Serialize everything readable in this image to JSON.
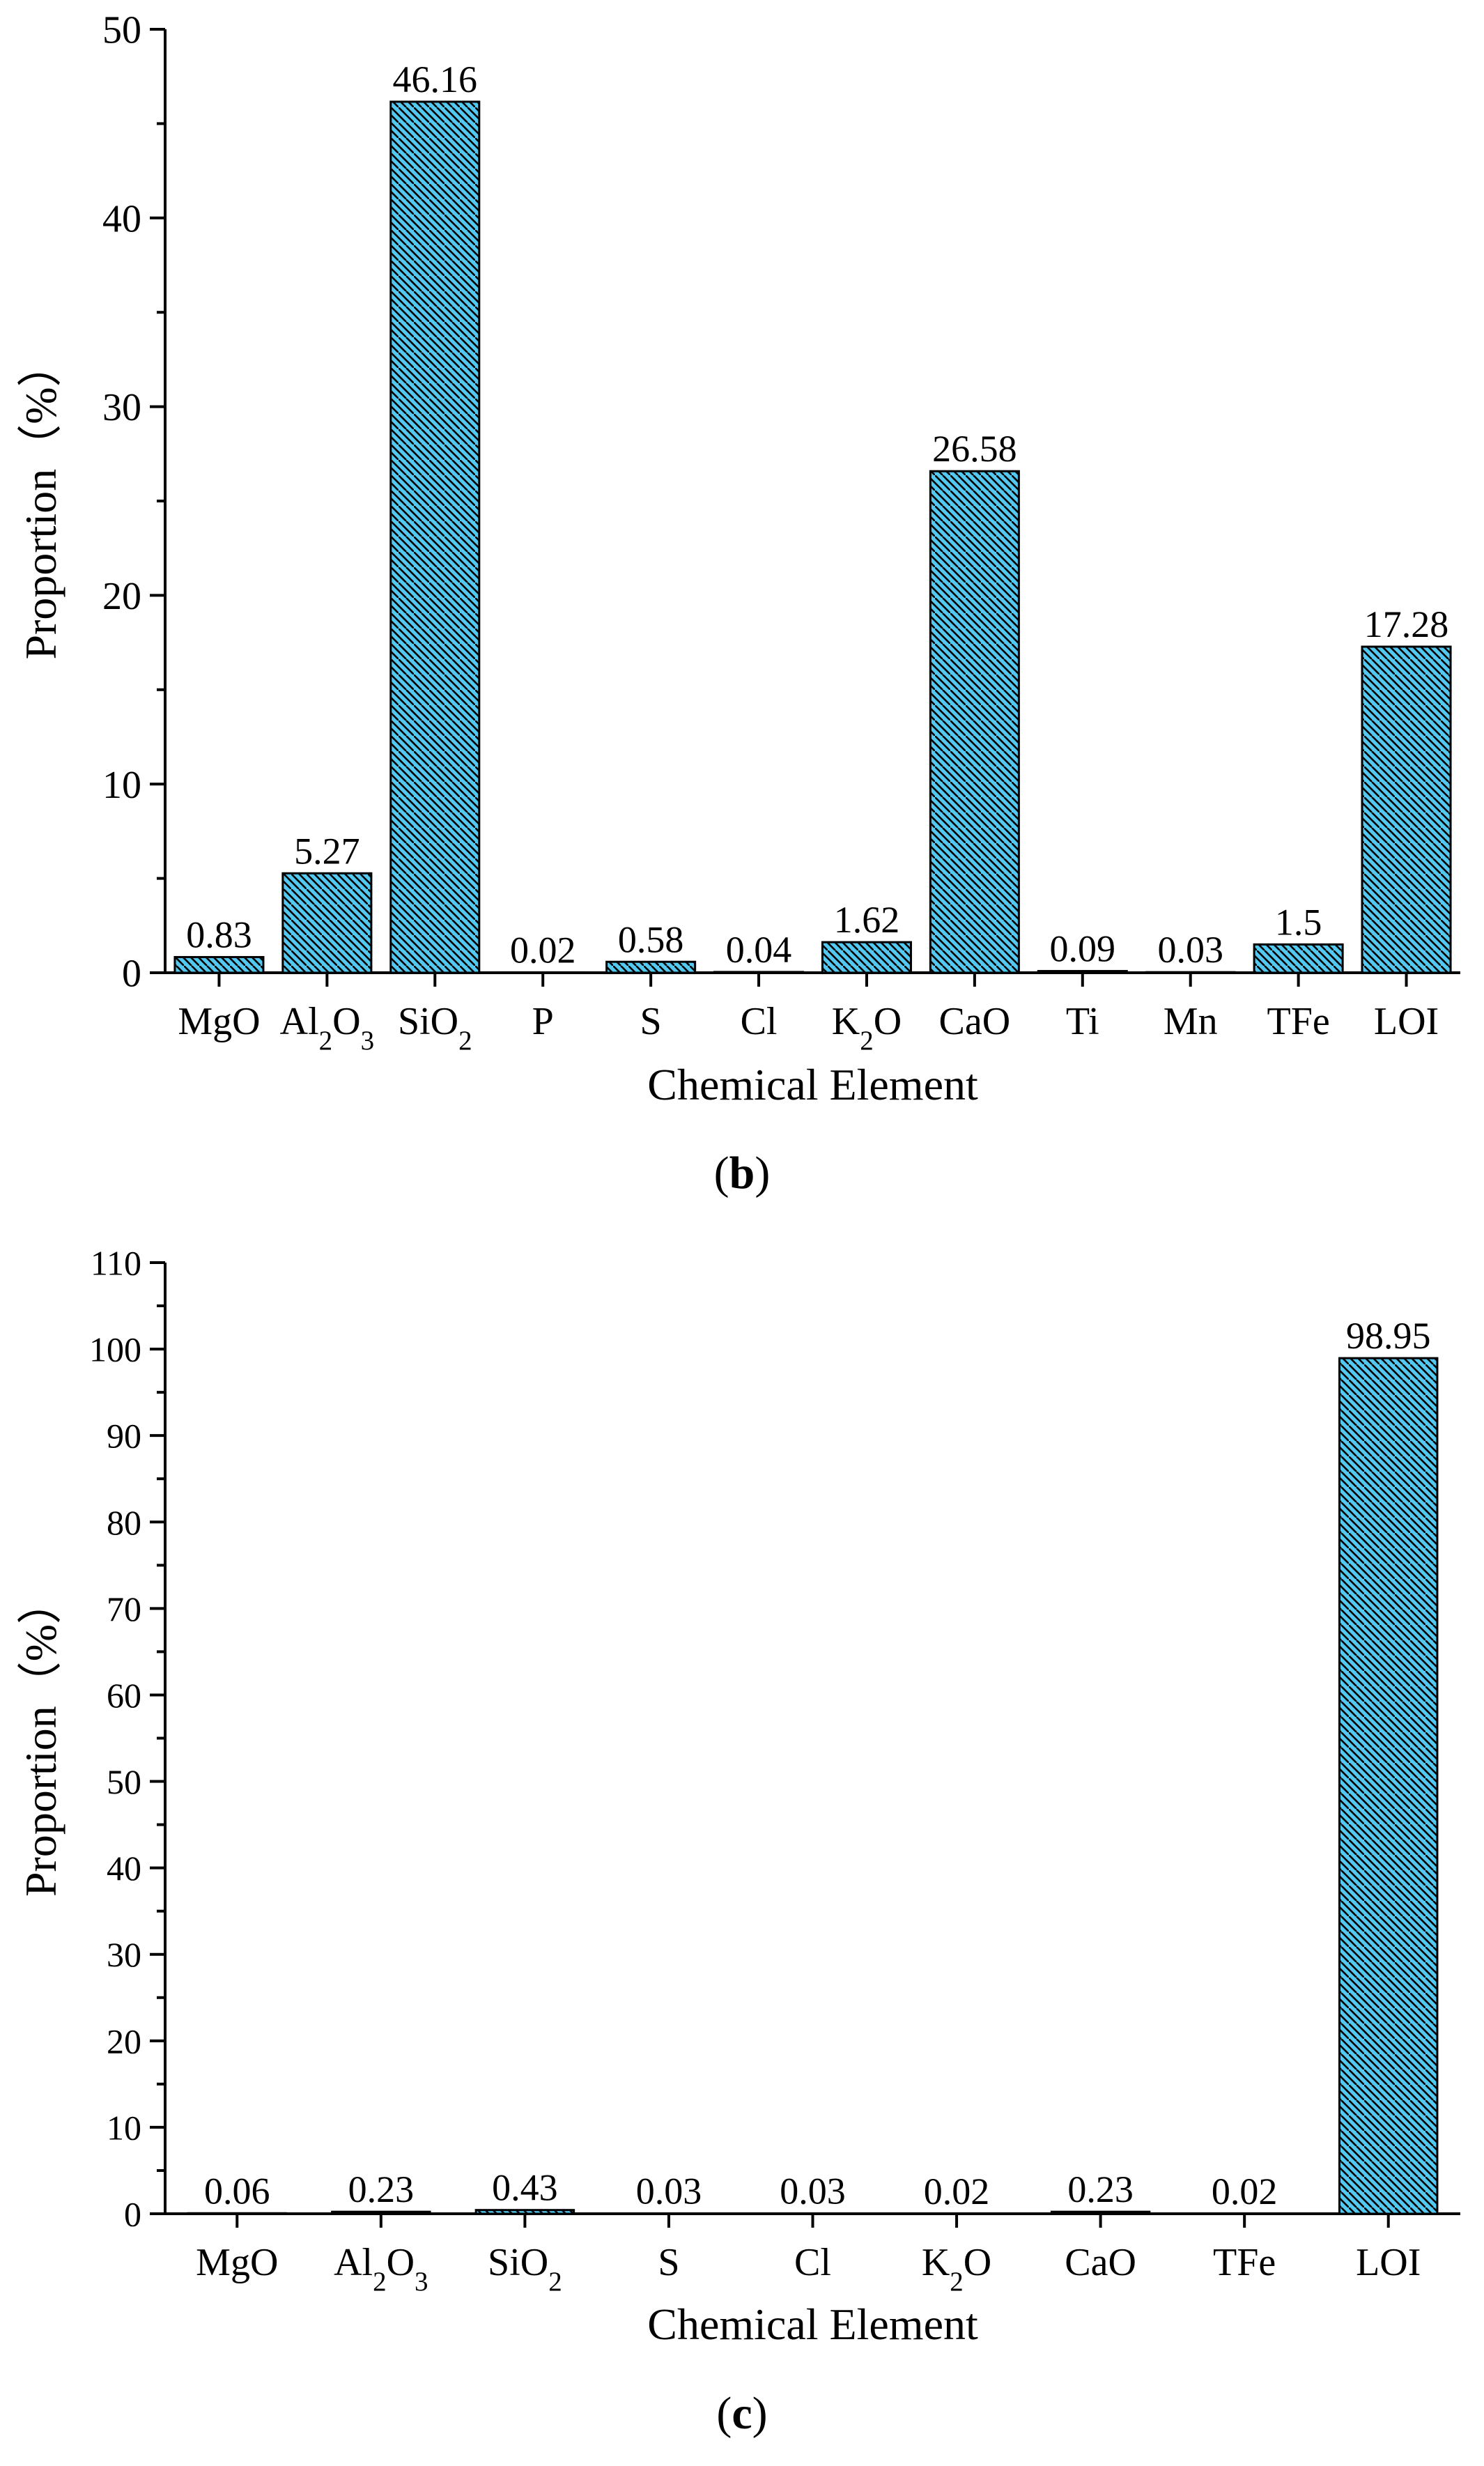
{
  "colors": {
    "bar_fill": "#53c8f1",
    "hatch": "#000000",
    "axis": "#000000"
  },
  "chart_data": [
    {
      "type": "bar",
      "panel_label": "b",
      "xlabel": "Chemical Element",
      "ylabel": "Proportion（%）",
      "ylim": [
        0,
        50
      ],
      "ytick_step": 10,
      "yminor_step": 5,
      "categories": [
        {
          "base": "MgO",
          "parts": [
            [
              "MgO",
              ""
            ]
          ]
        },
        {
          "base": "Al2O3",
          "parts": [
            [
              "Al",
              ""
            ],
            [
              "2",
              "sub"
            ],
            [
              "O",
              ""
            ],
            [
              "3",
              "sub"
            ]
          ]
        },
        {
          "base": "SiO2",
          "parts": [
            [
              "SiO",
              ""
            ],
            [
              "2",
              "sub"
            ]
          ]
        },
        {
          "base": "P",
          "parts": [
            [
              "P",
              ""
            ]
          ]
        },
        {
          "base": "S",
          "parts": [
            [
              "S",
              ""
            ]
          ]
        },
        {
          "base": "Cl",
          "parts": [
            [
              "Cl",
              ""
            ]
          ]
        },
        {
          "base": "K2O",
          "parts": [
            [
              "K",
              ""
            ],
            [
              "2",
              "sub"
            ],
            [
              "O",
              ""
            ]
          ]
        },
        {
          "base": "CaO",
          "parts": [
            [
              "CaO",
              ""
            ]
          ]
        },
        {
          "base": "Ti",
          "parts": [
            [
              "Ti",
              ""
            ]
          ]
        },
        {
          "base": "Mn",
          "parts": [
            [
              "Mn",
              ""
            ]
          ]
        },
        {
          "base": "TFe",
          "parts": [
            [
              "TFe",
              ""
            ]
          ]
        },
        {
          "base": "LOI",
          "parts": [
            [
              "LOI",
              ""
            ]
          ]
        }
      ],
      "values": [
        0.83,
        5.27,
        46.16,
        0.02,
        0.58,
        0.04,
        1.62,
        26.58,
        0.09,
        0.03,
        1.5,
        17.28
      ],
      "labels": [
        "0.83",
        "5.27",
        "46.16",
        "0.02",
        "0.58",
        "0.04",
        "1.62",
        "26.58",
        "0.09",
        "0.03",
        "1.5",
        "17.28"
      ]
    },
    {
      "type": "bar",
      "panel_label": "c",
      "xlabel": "Chemical Element",
      "ylabel": "Proportion（%）",
      "ylim": [
        0,
        110
      ],
      "ytick_step": 10,
      "yminor_step": 5,
      "categories": [
        {
          "base": "MgO",
          "parts": [
            [
              "MgO",
              ""
            ]
          ]
        },
        {
          "base": "Al2O3",
          "parts": [
            [
              "Al",
              ""
            ],
            [
              "2",
              "sub"
            ],
            [
              "O",
              ""
            ],
            [
              "3",
              "sub"
            ]
          ]
        },
        {
          "base": "SiO2",
          "parts": [
            [
              "SiO",
              ""
            ],
            [
              "2",
              "sub"
            ]
          ]
        },
        {
          "base": "S",
          "parts": [
            [
              "S",
              ""
            ]
          ]
        },
        {
          "base": "Cl",
          "parts": [
            [
              "Cl",
              ""
            ]
          ]
        },
        {
          "base": "K2O",
          "parts": [
            [
              "K",
              ""
            ],
            [
              "2",
              "sub"
            ],
            [
              "O",
              ""
            ]
          ]
        },
        {
          "base": "CaO",
          "parts": [
            [
              "CaO",
              ""
            ]
          ]
        },
        {
          "base": "TFe",
          "parts": [
            [
              "TFe",
              ""
            ]
          ]
        },
        {
          "base": "LOI",
          "parts": [
            [
              "LOI",
              ""
            ]
          ]
        }
      ],
      "values": [
        0.06,
        0.23,
        0.43,
        0.03,
        0.03,
        0.02,
        0.23,
        0.02,
        98.95
      ],
      "labels": [
        "0.06",
        "0.23",
        "0.43",
        "0.03",
        "0.03",
        "0.02",
        "0.23",
        "0.02",
        "98.95"
      ]
    }
  ]
}
